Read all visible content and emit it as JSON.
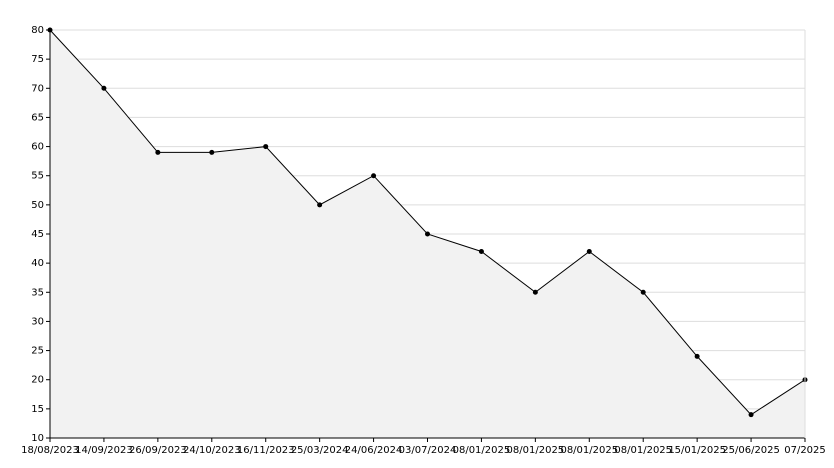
{
  "chart_data": {
    "type": "area",
    "categories": [
      "18/08/2023",
      "14/09/2023",
      "26/09/2023",
      "24/10/2023",
      "16/11/2023",
      "25/03/2024",
      "24/06/2024",
      "03/07/2024",
      "08/01/2025",
      "08/01/2025",
      "08/01/2025",
      "08/01/2025",
      "15/01/2025",
      "25/06/2025",
      "07/2025"
    ],
    "values": [
      80,
      70,
      59,
      59,
      60,
      50,
      55,
      45,
      42,
      35,
      42,
      35,
      24,
      14,
      20
    ],
    "color": "#000000",
    "fill": "#f2f2f2",
    "ylim": [
      10,
      80
    ],
    "yticks": [
      10,
      15,
      20,
      25,
      30,
      35,
      40,
      45,
      50,
      55,
      60,
      65,
      70,
      75,
      80
    ],
    "grid": true
  }
}
